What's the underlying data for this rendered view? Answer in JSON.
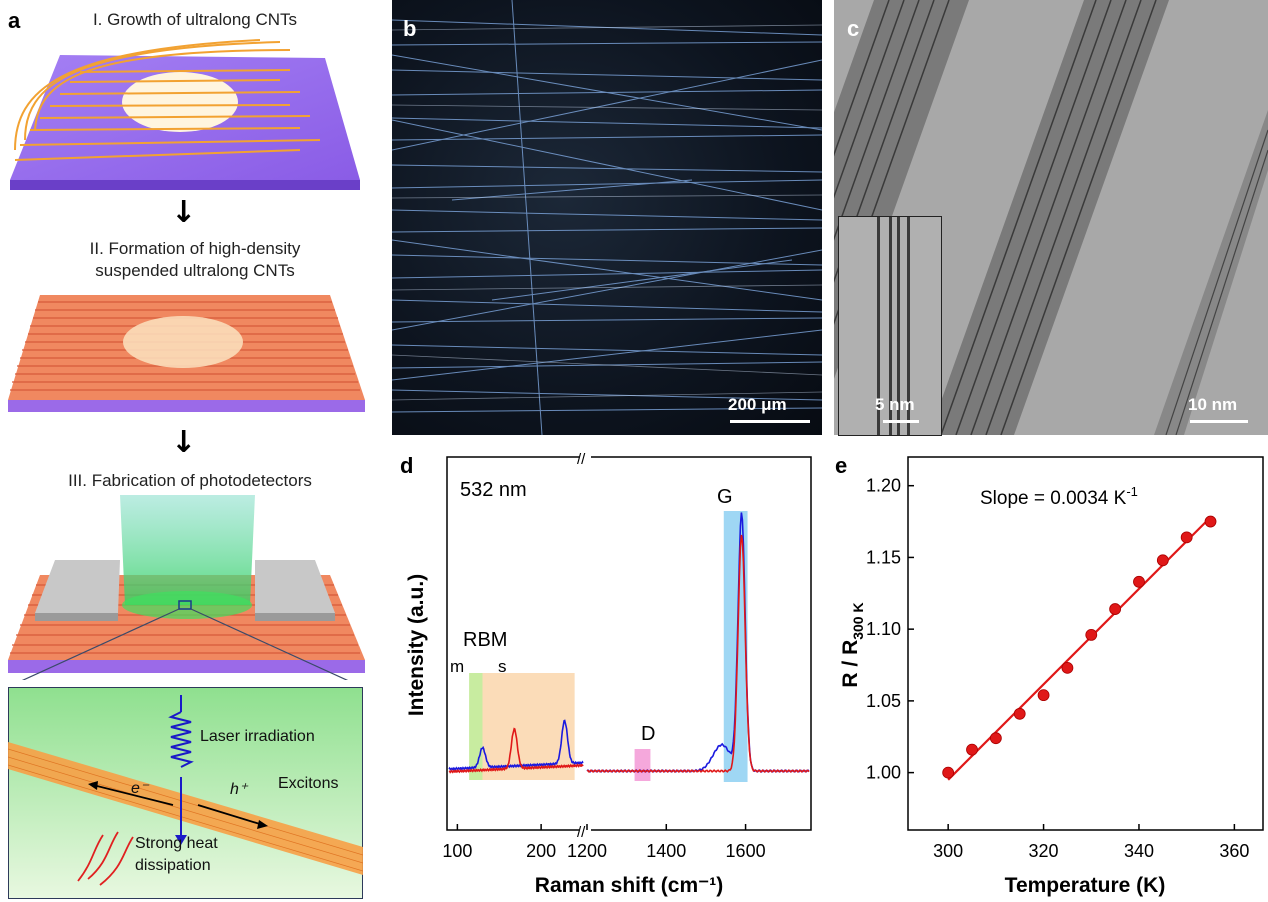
{
  "panel_a": {
    "label": "a",
    "step1": "I. Growth of ultralong CNTs",
    "step2_line1": "II. Formation of high-density",
    "step2_line2": "suspended ultralong CNTs",
    "step3": "III. Fabrication of photodetectors",
    "inset": {
      "laser": "Laser irradiation",
      "excitons": "Excitons",
      "electron": "e⁻",
      "hole": "h⁺",
      "heat_line1": "Strong heat",
      "heat_line2": "dissipation"
    }
  },
  "panel_b": {
    "label": "b",
    "scalebar": "200 μm"
  },
  "panel_c": {
    "label": "c",
    "scalebar": "10 nm",
    "inset_scalebar": "5 nm"
  },
  "panel_d": {
    "label": "d",
    "wavelength": "532 nm",
    "rbm": "RBM",
    "m": "m",
    "s": "s",
    "D": "D",
    "G": "G",
    "xlabel": "Raman shift (cm⁻¹)",
    "ylabel": "Intensity (a.u.)",
    "ticks_left": [
      "100",
      "200"
    ],
    "ticks_right": [
      "1200",
      "1400",
      "1600"
    ],
    "break_mark": "//"
  },
  "panel_e": {
    "label": "e"
  },
  "chart_data": [
    {
      "type": "line",
      "panel": "d",
      "xlabel": "Raman shift (cm-1)",
      "ylabel": "Intensity (a.u.)",
      "x_break": [
        250,
        1200
      ],
      "xlim_left": [
        90,
        250
      ],
      "xlim_right": [
        1200,
        1760
      ],
      "series": [
        {
          "color": "#1a1adf",
          "peaks": [
            {
              "x": 130,
              "h": 0.06
            },
            {
              "x": 228,
              "h": 0.13
            },
            {
              "x": 1540,
              "h": 0.08
            },
            {
              "x": 1590,
              "h": 0.78
            }
          ]
        },
        {
          "color": "#e01818",
          "peaks": [
            {
              "x": 168,
              "h": 0.12
            },
            {
              "x": 1590,
              "h": 0.72
            }
          ]
        }
      ],
      "bands": [
        {
          "name": "m",
          "from": 114,
          "to": 130,
          "color": "#c8eca0"
        },
        {
          "name": "RBM",
          "from": 130,
          "to": 240,
          "color": "#fbdcb8"
        },
        {
          "name": "D",
          "from": 1320,
          "to": 1360,
          "color": "#f5a8dc"
        },
        {
          "name": "G",
          "from": 1545,
          "to": 1605,
          "color": "#9fd7f4"
        }
      ]
    },
    {
      "type": "scatter",
      "panel": "e",
      "xlabel": "Temperature (K)",
      "ylabel_main": "R / R",
      "ylabel_sub": "300 K",
      "annotation": "Slope = 0.0034 K",
      "annotation_sup": "-1",
      "xlim": [
        292,
        366
      ],
      "ylim": [
        0.96,
        1.22
      ],
      "xticks": [
        300,
        320,
        340,
        360
      ],
      "yticks": [
        1.0,
        1.05,
        1.1,
        1.15,
        1.2
      ],
      "x": [
        300,
        305,
        310,
        315,
        320,
        325,
        330,
        335,
        340,
        345,
        350,
        355
      ],
      "y": [
        1.0,
        1.016,
        1.024,
        1.041,
        1.054,
        1.073,
        1.096,
        1.114,
        1.133,
        1.148,
        1.164,
        1.175
      ],
      "fit": {
        "slope": 0.0034,
        "x": [
          300,
          355
        ],
        "y": [
          0.995,
          1.178
        ]
      },
      "color": "#e01818"
    }
  ]
}
